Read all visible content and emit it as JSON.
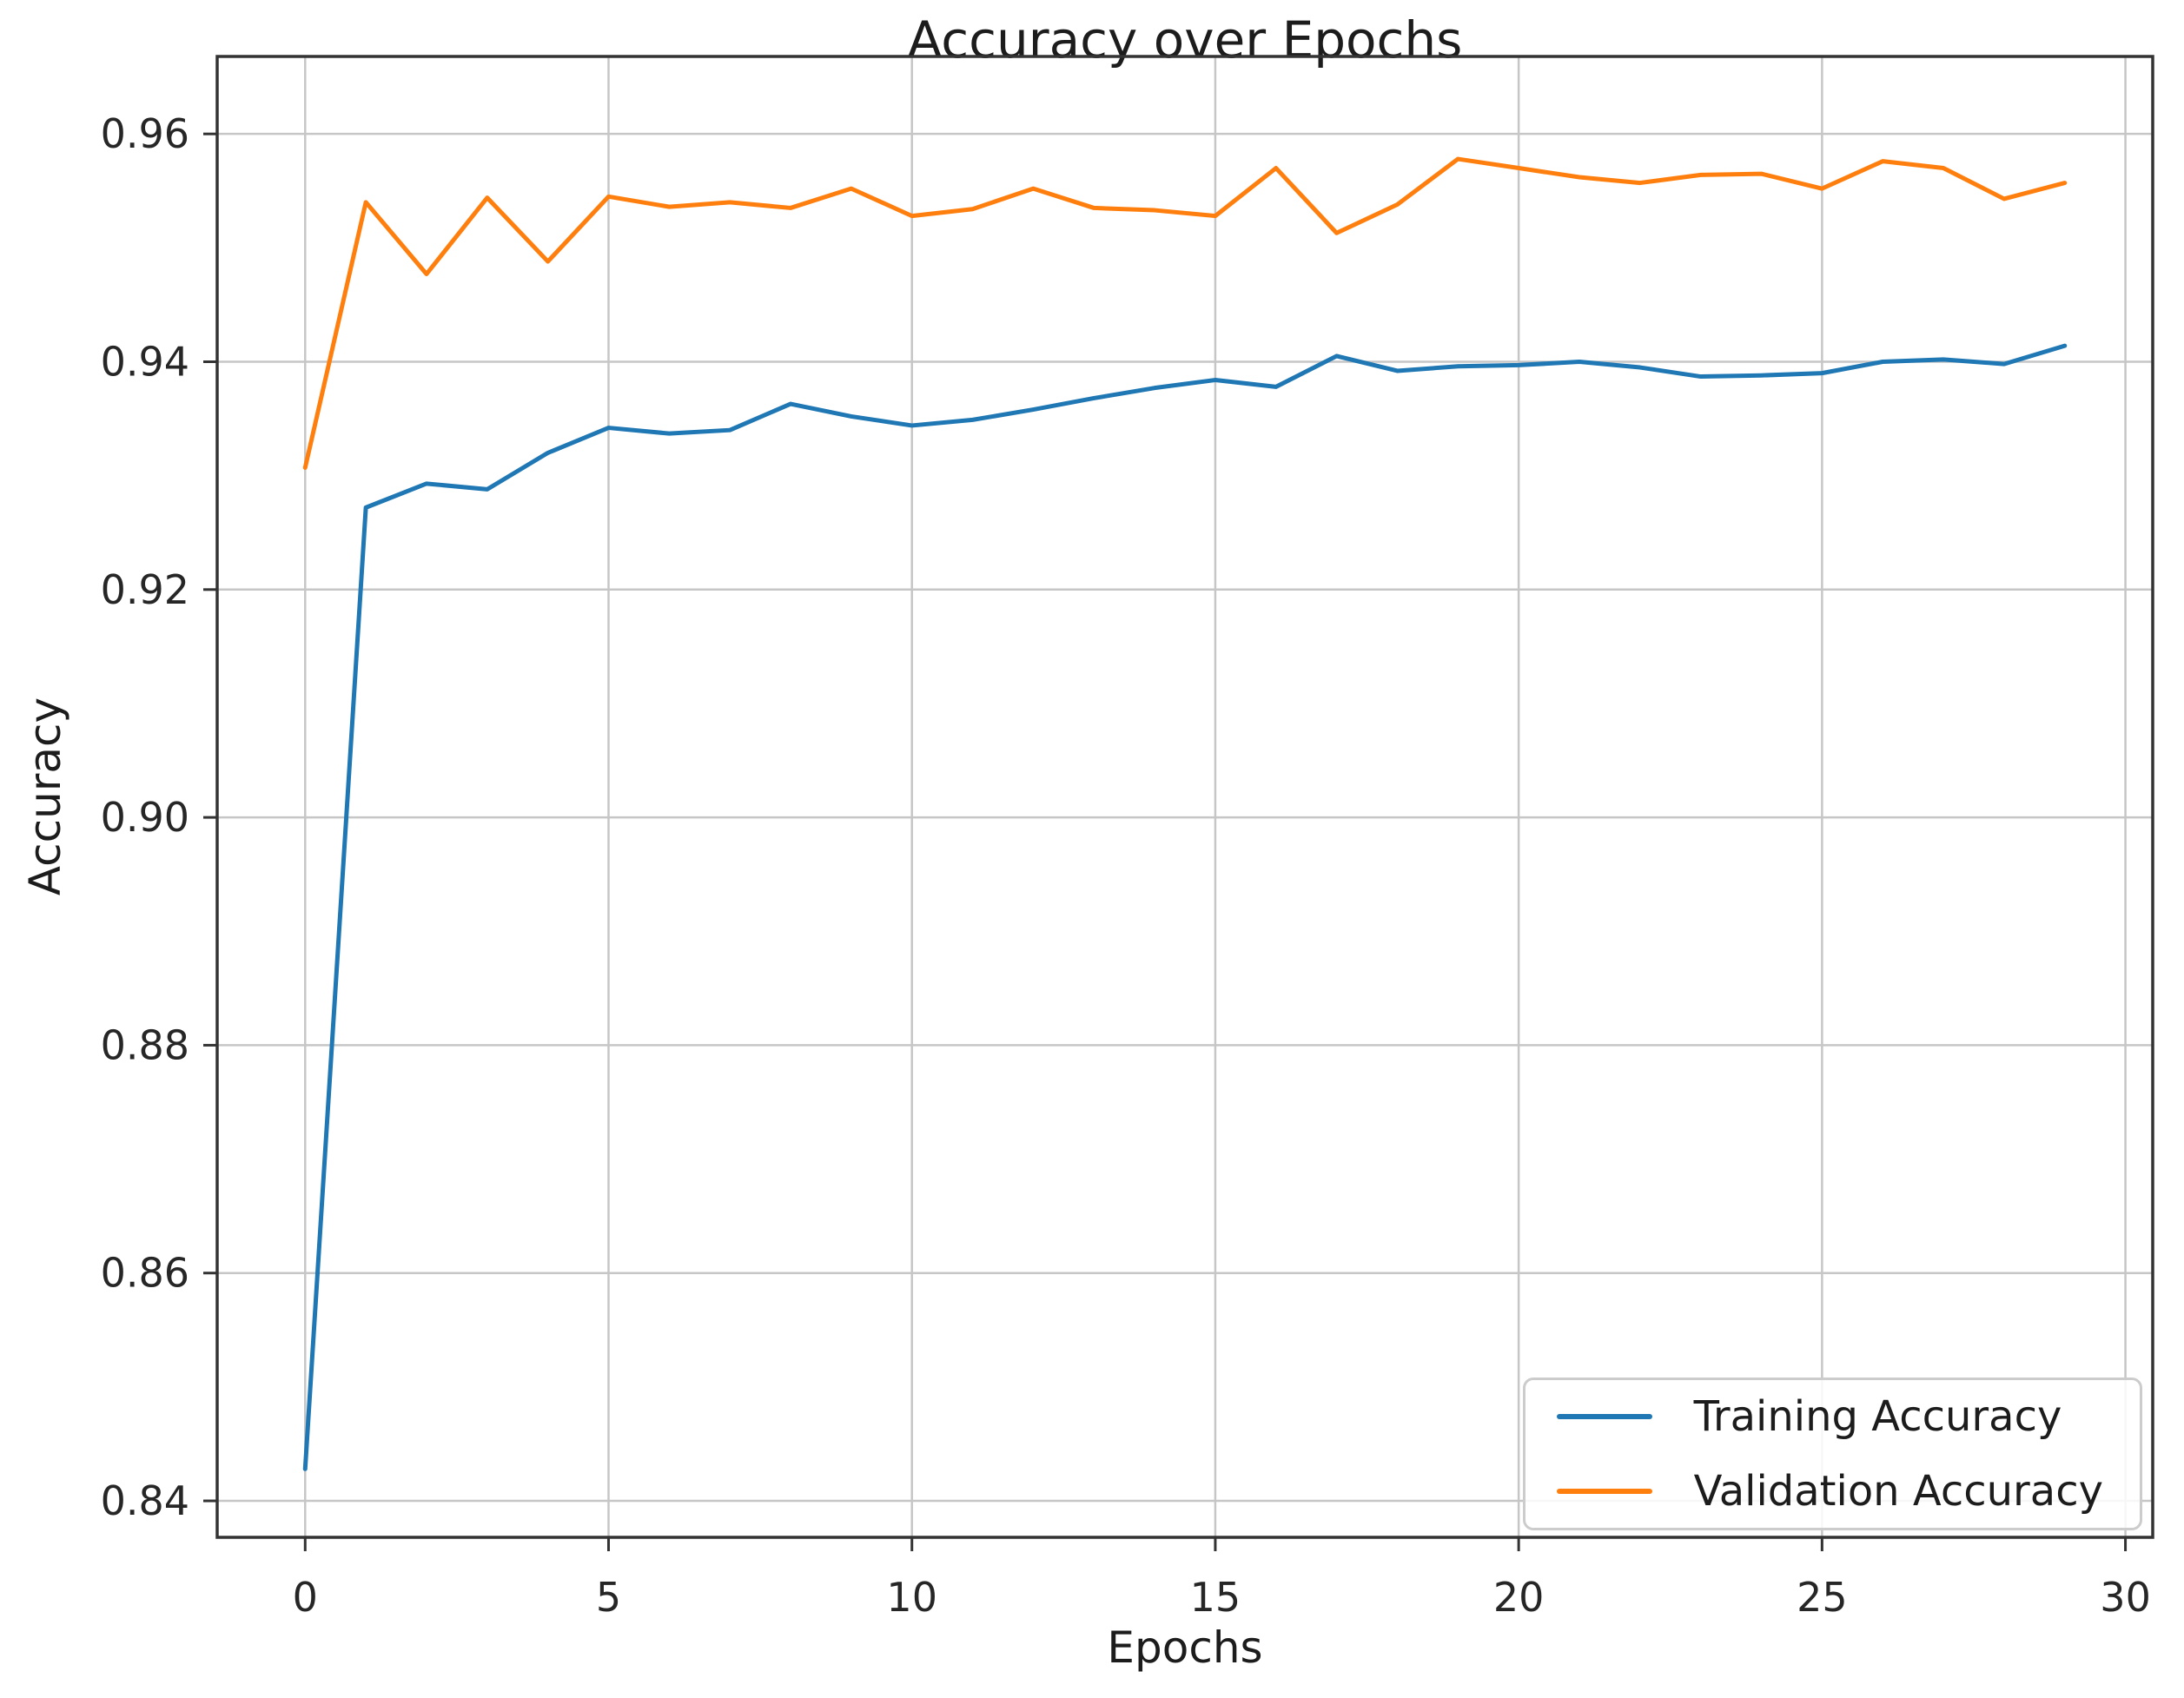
{
  "chart_data": {
    "type": "line",
    "title": "Accuracy over Epochs",
    "xlabel": "Epochs",
    "ylabel": "Accuracy",
    "x": [
      0,
      1,
      2,
      3,
      4,
      5,
      6,
      7,
      8,
      9,
      10,
      11,
      12,
      13,
      14,
      15,
      16,
      17,
      18,
      19,
      20,
      21,
      22,
      23,
      24,
      25,
      26,
      27,
      28,
      29
    ],
    "series": [
      {
        "name": "Training Accuracy",
        "color": "#1f77b4",
        "values": [
          0.8428,
          0.9272,
          0.9293,
          0.9288,
          0.932,
          0.9342,
          0.9337,
          0.934,
          0.9363,
          0.9352,
          0.9344,
          0.9349,
          0.9358,
          0.9368,
          0.9377,
          0.9384,
          0.9378,
          0.9405,
          0.9392,
          0.9396,
          0.9397,
          0.94,
          0.9395,
          0.9387,
          0.9388,
          0.939,
          0.94,
          0.9402,
          0.9398,
          0.9414
        ]
      },
      {
        "name": "Validation Accuracy",
        "color": "#ff7f0e",
        "values": [
          0.9307,
          0.954,
          0.9477,
          0.9544,
          0.9488,
          0.9545,
          0.9536,
          0.954,
          0.9535,
          0.9552,
          0.9528,
          0.9534,
          0.9552,
          0.9535,
          0.9533,
          0.9528,
          0.957,
          0.9513,
          0.9538,
          0.9578,
          0.957,
          0.9562,
          0.9557,
          0.9564,
          0.9565,
          0.9552,
          0.9576,
          0.957,
          0.9543,
          0.9557
        ]
      }
    ],
    "xlim": [
      -1.45,
      30.45
    ],
    "ylim": [
      0.8368,
      0.9668
    ],
    "xticks": [
      0,
      5,
      10,
      15,
      20,
      25,
      30
    ],
    "yticks": [
      0.84,
      0.86,
      0.88,
      0.9,
      0.92,
      0.94,
      0.96
    ],
    "grid": true,
    "legend_position": "lower right",
    "style": {
      "grid_color": "#c6c6c6",
      "spine_color": "#333333",
      "tick_text_color": "#262626",
      "background": "#ffffff"
    }
  }
}
